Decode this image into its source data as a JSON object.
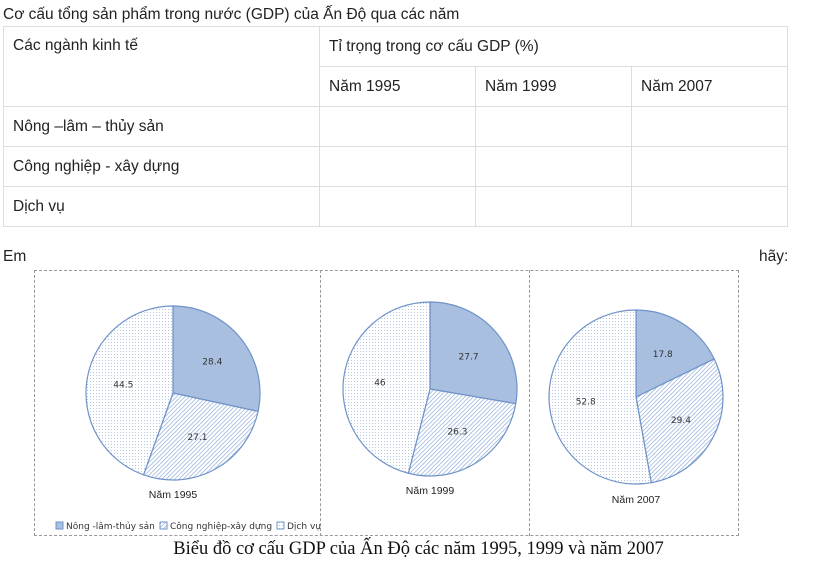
{
  "title": "Cơ cấu tổng sản phẩm trong nước (GDP) của Ấn Độ qua các năm",
  "table": {
    "col1_header": "Các ngành kinh tế",
    "group_header": "Tỉ trọng trong cơ cấu GDP (%)",
    "years": [
      "Năm 1995",
      "Năm 1999",
      "Năm 2007"
    ],
    "rows": [
      "Nông –lâm – thủy sản",
      "Công nghiệp - xây dựng",
      "Dịch vụ"
    ]
  },
  "text_left": "Em",
  "text_right": "hãy:",
  "chart_data": {
    "type": "pie",
    "title": "Biểu đồ cơ cấu GDP của Ấn Độ các năm 1995, 1999 và năm 2007",
    "legend": [
      "Nông -lâm-thủy sản",
      "Công nghiệp-xây dựng",
      "Dịch vụ"
    ],
    "legend_placement": "bottom",
    "colors": {
      "stroke": "#6f93c9",
      "fill_agri": "#a9bfe0",
      "pattern": "#7d9dd0"
    },
    "pies": [
      {
        "label": "Năm 1995",
        "values": [
          28.4,
          27.1,
          44.5
        ],
        "value_labels": [
          "28.4",
          "27.1",
          "44.5"
        ]
      },
      {
        "label": "Năm 1999",
        "values": [
          27.7,
          26.3,
          46
        ],
        "value_labels": [
          "27.7",
          "26.3",
          "46"
        ]
      },
      {
        "label": "Năm 2007",
        "values": [
          17.8,
          29.4,
          52.8
        ],
        "value_labels": [
          "17.8",
          "29.4",
          "52.8"
        ]
      }
    ]
  }
}
